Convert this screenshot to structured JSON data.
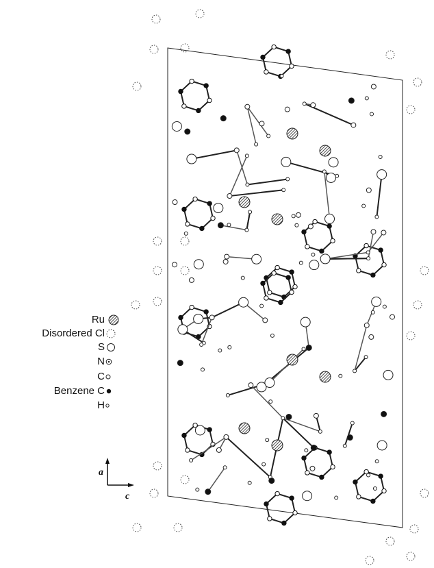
{
  "legend": [
    "Ru",
    "Disordered Cl",
    "S",
    "N",
    "C",
    "Benzene C",
    "H"
  ],
  "axes": {
    "vertical": "a",
    "horizontal": "c"
  }
}
